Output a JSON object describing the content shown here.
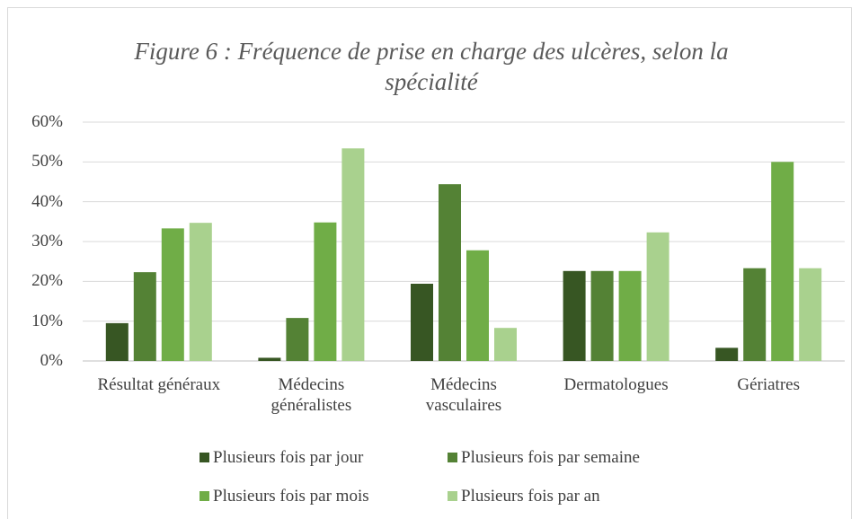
{
  "chart_data": {
    "type": "bar",
    "title": "Figure 6 : Fréquence de prise en charge des ulcères, selon la spécialité",
    "categories": [
      "Résultat généraux",
      "Médecins généralistes",
      "Médecins vasculaires",
      "Dermatologues",
      "Gériatres"
    ],
    "series": [
      {
        "name": "Plusieurs fois par jour",
        "color": "#375623",
        "values": [
          9.5,
          0.8,
          19.4,
          22.6,
          3.3
        ]
      },
      {
        "name": "Plusieurs fois par semaine",
        "color": "#548235",
        "values": [
          22.3,
          10.8,
          44.4,
          22.6,
          23.3
        ]
      },
      {
        "name": "Plusieurs fois par mois",
        "color": "#70ad47",
        "values": [
          33.3,
          34.8,
          27.8,
          22.6,
          50
        ]
      },
      {
        "name": "Plusieurs fois par an",
        "color": "#a9d18e",
        "values": [
          34.7,
          53.4,
          8.3,
          32.3,
          23.3
        ]
      }
    ],
    "ylim": [
      0,
      60
    ],
    "yticks": [
      {
        "value": 0,
        "label": "0%"
      },
      {
        "value": 10,
        "label": "10%"
      },
      {
        "value": 20,
        "label": "20%"
      },
      {
        "value": 30,
        "label": "30%"
      },
      {
        "value": 40,
        "label": "40%"
      },
      {
        "value": 50,
        "label": "50%"
      },
      {
        "value": 60,
        "label": "60%"
      }
    ],
    "grid": true
  }
}
